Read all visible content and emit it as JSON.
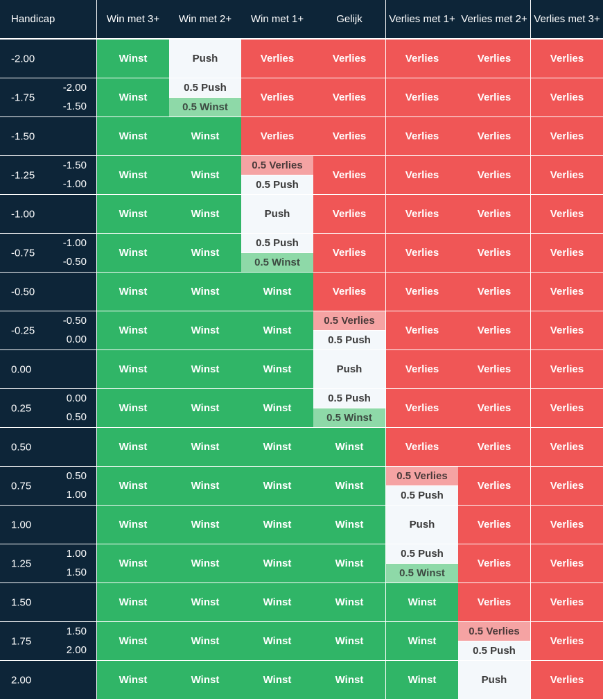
{
  "headers": [
    "Handicap",
    "Win met 3+",
    "Win met 2+",
    "Win met 1+",
    "Gelijk",
    "Verlies met 1+",
    "Verlies met 2+",
    "Verlies met 3+"
  ],
  "rows": [
    {
      "handicap": "-2.00",
      "sub": [],
      "results": [
        [
          "Winst"
        ],
        [
          "Push"
        ],
        [
          "Verlies"
        ],
        [
          "Verlies"
        ],
        [
          "Verlies"
        ],
        [
          "Verlies"
        ],
        [
          "Verlies"
        ]
      ]
    },
    {
      "handicap": "-1.75",
      "sub": [
        "-2.00",
        "-1.50"
      ],
      "results": [
        [
          "Winst"
        ],
        [
          "0.5 Push",
          "0.5 Winst"
        ],
        [
          "Verlies"
        ],
        [
          "Verlies"
        ],
        [
          "Verlies"
        ],
        [
          "Verlies"
        ],
        [
          "Verlies"
        ]
      ]
    },
    {
      "handicap": "-1.50",
      "sub": [],
      "results": [
        [
          "Winst"
        ],
        [
          "Winst"
        ],
        [
          "Verlies"
        ],
        [
          "Verlies"
        ],
        [
          "Verlies"
        ],
        [
          "Verlies"
        ],
        [
          "Verlies"
        ]
      ]
    },
    {
      "handicap": "-1.25",
      "sub": [
        "-1.50",
        "-1.00"
      ],
      "results": [
        [
          "Winst"
        ],
        [
          "Winst"
        ],
        [
          "0.5 Verlies",
          "0.5 Push"
        ],
        [
          "Verlies"
        ],
        [
          "Verlies"
        ],
        [
          "Verlies"
        ],
        [
          "Verlies"
        ]
      ]
    },
    {
      "handicap": "-1.00",
      "sub": [],
      "results": [
        [
          "Winst"
        ],
        [
          "Winst"
        ],
        [
          "Push"
        ],
        [
          "Verlies"
        ],
        [
          "Verlies"
        ],
        [
          "Verlies"
        ],
        [
          "Verlies"
        ]
      ]
    },
    {
      "handicap": "-0.75",
      "sub": [
        "-1.00",
        "-0.50"
      ],
      "results": [
        [
          "Winst"
        ],
        [
          "Winst"
        ],
        [
          "0.5 Push",
          "0.5 Winst"
        ],
        [
          "Verlies"
        ],
        [
          "Verlies"
        ],
        [
          "Verlies"
        ],
        [
          "Verlies"
        ]
      ]
    },
    {
      "handicap": "-0.50",
      "sub": [],
      "results": [
        [
          "Winst"
        ],
        [
          "Winst"
        ],
        [
          "Winst"
        ],
        [
          "Verlies"
        ],
        [
          "Verlies"
        ],
        [
          "Verlies"
        ],
        [
          "Verlies"
        ]
      ]
    },
    {
      "handicap": "-0.25",
      "sub": [
        "-0.50",
        "0.00"
      ],
      "results": [
        [
          "Winst"
        ],
        [
          "Winst"
        ],
        [
          "Winst"
        ],
        [
          "0.5 Verlies",
          "0.5 Push"
        ],
        [
          "Verlies"
        ],
        [
          "Verlies"
        ],
        [
          "Verlies"
        ]
      ]
    },
    {
      "handicap": "0.00",
      "sub": [],
      "results": [
        [
          "Winst"
        ],
        [
          "Winst"
        ],
        [
          "Winst"
        ],
        [
          "Push"
        ],
        [
          "Verlies"
        ],
        [
          "Verlies"
        ],
        [
          "Verlies"
        ]
      ]
    },
    {
      "handicap": "0.25",
      "sub": [
        "0.00",
        "0.50"
      ],
      "results": [
        [
          "Winst"
        ],
        [
          "Winst"
        ],
        [
          "Winst"
        ],
        [
          "0.5 Push",
          "0.5 Winst"
        ],
        [
          "Verlies"
        ],
        [
          "Verlies"
        ],
        [
          "Verlies"
        ]
      ]
    },
    {
      "handicap": "0.50",
      "sub": [],
      "results": [
        [
          "Winst"
        ],
        [
          "Winst"
        ],
        [
          "Winst"
        ],
        [
          "Winst"
        ],
        [
          "Verlies"
        ],
        [
          "Verlies"
        ],
        [
          "Verlies"
        ]
      ]
    },
    {
      "handicap": "0.75",
      "sub": [
        "0.50",
        "1.00"
      ],
      "results": [
        [
          "Winst"
        ],
        [
          "Winst"
        ],
        [
          "Winst"
        ],
        [
          "Winst"
        ],
        [
          "0.5 Verlies",
          "0.5 Push"
        ],
        [
          "Verlies"
        ],
        [
          "Verlies"
        ]
      ]
    },
    {
      "handicap": "1.00",
      "sub": [],
      "results": [
        [
          "Winst"
        ],
        [
          "Winst"
        ],
        [
          "Winst"
        ],
        [
          "Winst"
        ],
        [
          "Push"
        ],
        [
          "Verlies"
        ],
        [
          "Verlies"
        ]
      ]
    },
    {
      "handicap": "1.25",
      "sub": [
        "1.00",
        "1.50"
      ],
      "results": [
        [
          "Winst"
        ],
        [
          "Winst"
        ],
        [
          "Winst"
        ],
        [
          "Winst"
        ],
        [
          "0.5 Push",
          "0.5 Winst"
        ],
        [
          "Verlies"
        ],
        [
          "Verlies"
        ]
      ]
    },
    {
      "handicap": "1.50",
      "sub": [],
      "results": [
        [
          "Winst"
        ],
        [
          "Winst"
        ],
        [
          "Winst"
        ],
        [
          "Winst"
        ],
        [
          "Winst"
        ],
        [
          "Verlies"
        ],
        [
          "Verlies"
        ]
      ]
    },
    {
      "handicap": "1.75",
      "sub": [
        "1.50",
        "2.00"
      ],
      "results": [
        [
          "Winst"
        ],
        [
          "Winst"
        ],
        [
          "Winst"
        ],
        [
          "Winst"
        ],
        [
          "Winst"
        ],
        [
          "0.5 Verlies",
          "0.5 Push"
        ],
        [
          "Verlies"
        ]
      ]
    },
    {
      "handicap": "2.00",
      "sub": [],
      "results": [
        [
          "Winst"
        ],
        [
          "Winst"
        ],
        [
          "Winst"
        ],
        [
          "Winst"
        ],
        [
          "Winst"
        ],
        [
          "Push"
        ],
        [
          "Verlies"
        ]
      ]
    }
  ],
  "colors": {
    "header_bg": "#0d2538",
    "winst": "#30b567",
    "verlies": "#f05656",
    "push": "#f4f8fb",
    "half_winst": "#8ed9a8",
    "half_verlies": "#f5a3a3"
  }
}
